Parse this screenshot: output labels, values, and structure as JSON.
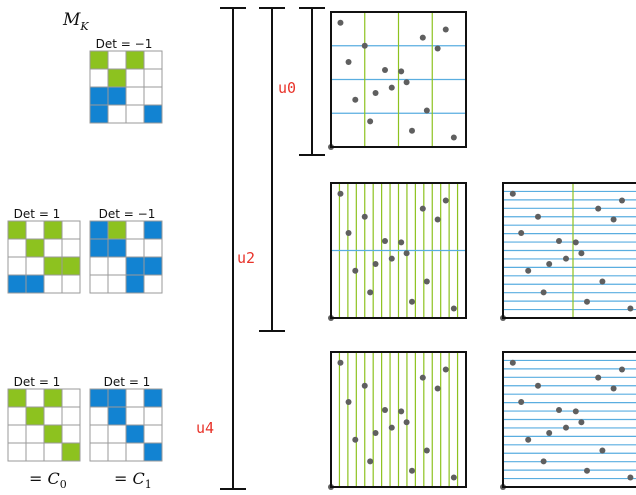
{
  "header": {
    "mk_main": "M",
    "mk_sub": "K"
  },
  "colors": {
    "green": "#8dc21f",
    "blue": "#1283d2",
    "grid": "#9a9a9a",
    "hline": "#5aaee0",
    "vline": "#8dc21f",
    "point": "#5f5f5f",
    "label_red": "#e8332a"
  },
  "matrices": {
    "top": {
      "det_label": "Det = −1",
      "cells": [
        "g.g.",
        ".g..",
        "bb..",
        "b..b"
      ]
    },
    "mid_left": {
      "det_label": "Det = 1",
      "cells": [
        "g.g.",
        ".g..",
        "..gg",
        "bb.."
      ]
    },
    "mid_right": {
      "det_label": "Det = −1",
      "cells": [
        "bg.b",
        "bb..",
        "..bb",
        "..b."
      ]
    },
    "bot_left": {
      "det_label": "Det = 1",
      "cells": [
        "g.g.",
        ".g..",
        "..g.",
        "...g"
      ]
    },
    "bot_right": {
      "det_label": "Det = 1",
      "cells": [
        "bb.b",
        ".b..",
        "..b.",
        "...b"
      ]
    }
  },
  "equations": {
    "c0": {
      "prefix": "= ",
      "var": "C",
      "sub": "0"
    },
    "c1": {
      "prefix": "= ",
      "var": "C",
      "sub": "1"
    }
  },
  "bracket_labels": {
    "u0": "u0",
    "u2": "u2",
    "u4": "u4"
  },
  "panels": {
    "p0": {
      "hlines": 4,
      "vlines": 4
    },
    "p_mid_left": {
      "hlines": 1,
      "vlines": 16
    },
    "p_mid_right": {
      "hlines": 16,
      "vlines": 1
    },
    "p_bot_left": {
      "hlines": 0,
      "vlines": 16
    },
    "p_bot_right": {
      "hlines": 16,
      "vlines": 0
    }
  }
}
